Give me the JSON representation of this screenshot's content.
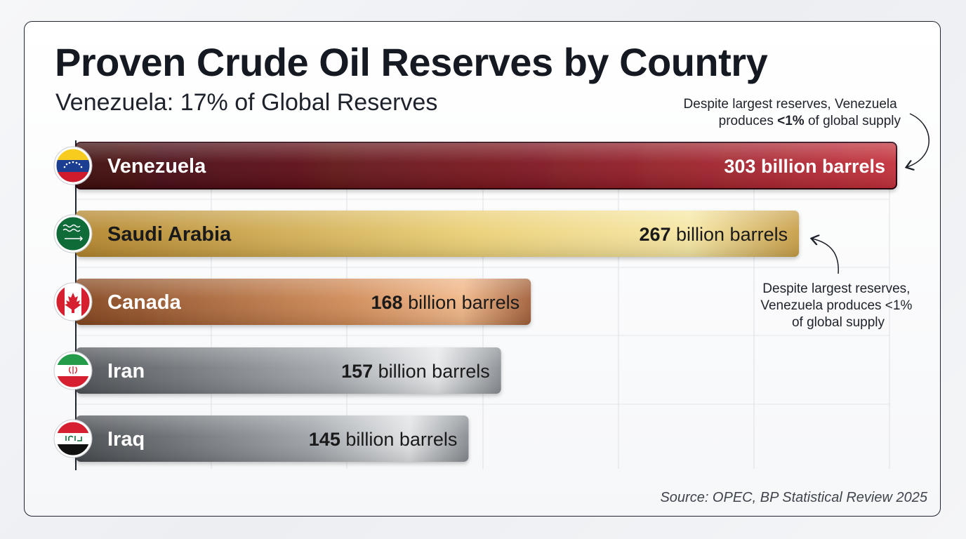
{
  "chart_data": {
    "type": "bar",
    "orientation": "horizontal",
    "title": "Proven Crude Oil Reserves by Country",
    "subtitle": "Venezuela: 17% of Global Reserves",
    "categories": [
      "Venezuela",
      "Saudi Arabia",
      "Canada",
      "Iran",
      "Iraq"
    ],
    "values": [
      303,
      267,
      168,
      157,
      145
    ],
    "value_labels": [
      {
        "number": "303",
        "unit": "billion barrels"
      },
      {
        "number": "267",
        "unit": "billion barrels"
      },
      {
        "number": "168",
        "unit": "billion barrels"
      },
      {
        "number": "157",
        "unit": "billion barrels"
      },
      {
        "number": "145",
        "unit": "billion barrels"
      }
    ],
    "xlim": [
      0,
      303
    ],
    "grid": true,
    "legend": "none",
    "annotations": [
      {
        "lines": [
          "Despite largest reserves, Venezuela",
          "produces ",
          "<1%",
          " of global supply"
        ]
      },
      {
        "lines": [
          "Despite largest reserves,",
          "Venezuela produces <1%",
          "of global supply"
        ]
      }
    ],
    "source": "Source: OPEC, BP Statistical Review 2025",
    "colors": {
      "venezuela": [
        "#4a0c12",
        "#8c1a22",
        "#c0303a"
      ],
      "saudi_arabia": [
        "#b88a2e",
        "#ecd27a",
        "#f7e9a8",
        "#c9a04a"
      ],
      "canada": [
        "#8a4a22",
        "#d08a56",
        "#f0b486",
        "#a8643a"
      ],
      "iran": [
        "#55595e",
        "#9ea3a8",
        "#e4e6e8",
        "#8c9196"
      ],
      "iraq": [
        "#4d5156",
        "#9a9fa4",
        "#dfe1e3",
        "#8a8f94"
      ]
    }
  }
}
